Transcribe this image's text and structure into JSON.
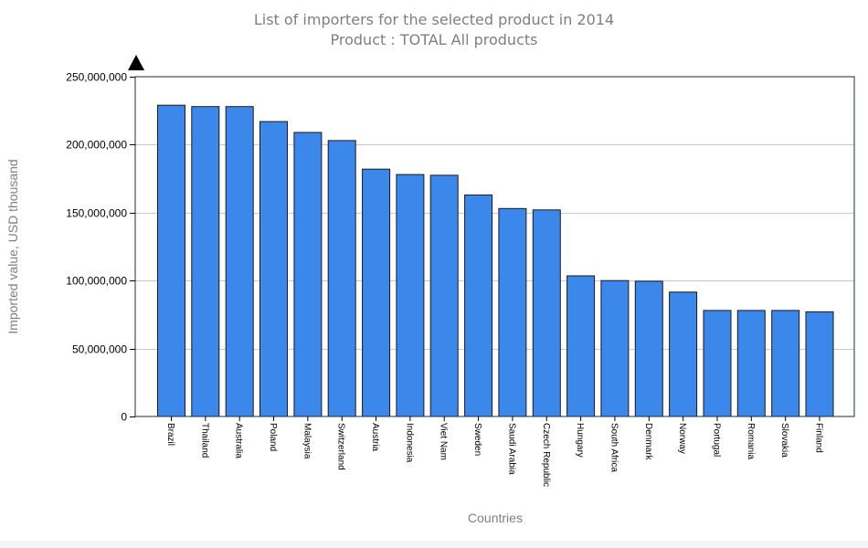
{
  "chart_data": {
    "type": "bar",
    "title": "List of importers for the selected product in 2014",
    "subtitle": "Product : TOTAL All products",
    "xlabel": "Countries",
    "ylabel": "Imported value, USD thousand",
    "ylim": [
      0,
      250000000
    ],
    "yticks": [
      0,
      50000000,
      100000000,
      150000000,
      200000000,
      250000000
    ],
    "ytick_labels": [
      "0",
      "50,000,000",
      "100,000,000",
      "150,000,000",
      "200,000,000",
      "250,000,000"
    ],
    "grid": true,
    "bar_color": "#3c87ea",
    "categories": [
      "Brazil",
      "Thailand",
      "Australia",
      "Poland",
      "Malaysia",
      "Switzerland",
      "Austria",
      "Indonesia",
      "Viet Nam",
      "Sweden",
      "Saudi Arabia",
      "Czech Republic",
      "Hungary",
      "South Africa",
      "Denmark",
      "Norway",
      "Portugal",
      "Romania",
      "Slovakia",
      "Finland"
    ],
    "values": [
      229000000,
      228000000,
      228000000,
      217000000,
      209000000,
      203000000,
      182000000,
      178000000,
      177500000,
      163000000,
      153000000,
      152000000,
      103500000,
      100000000,
      99500000,
      91500000,
      78000000,
      78000000,
      78000000,
      77000000
    ]
  }
}
